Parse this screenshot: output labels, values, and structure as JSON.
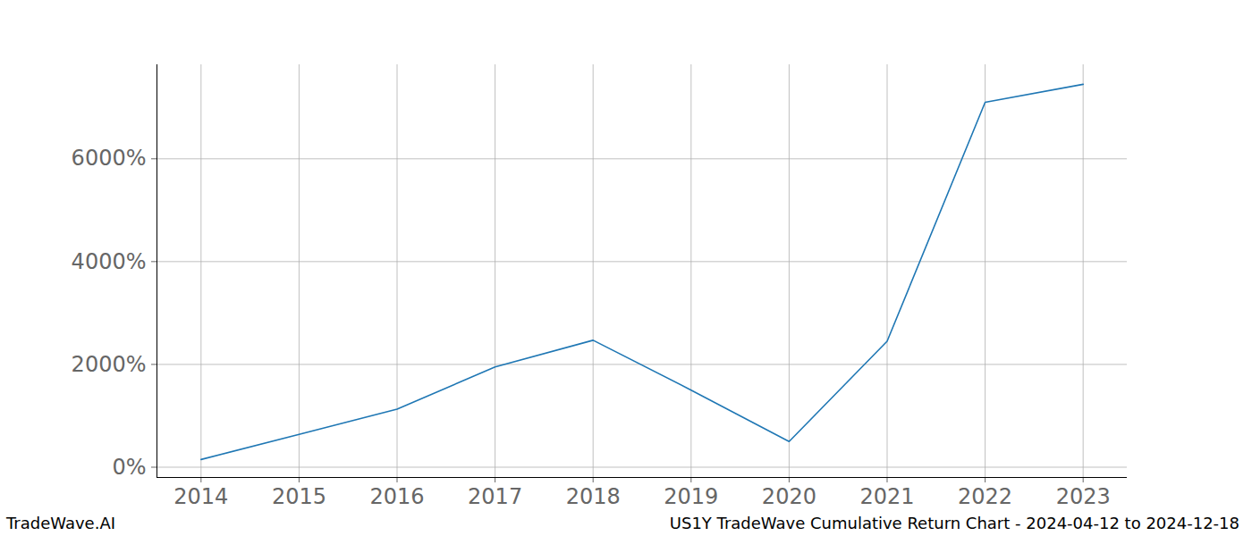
{
  "chart_data": {
    "type": "line",
    "title": "US1Y TradeWave Cumulative Return Chart - 2024-04-12 to 2024-12-18",
    "caption": "TradeWave.AI",
    "x": [
      2014,
      2015,
      2016,
      2017,
      2018,
      2019,
      2020,
      2021,
      2022,
      2023
    ],
    "values": [
      150,
      640,
      1130,
      1950,
      2470,
      1500,
      500,
      2450,
      7100,
      7450
    ],
    "color": "#1f77b4",
    "xlim": [
      2013.55,
      2023.45
    ],
    "xticks": [
      2014,
      2015,
      2016,
      2017,
      2018,
      2019,
      2020,
      2021,
      2022,
      2023
    ],
    "ylim": [
      -200,
      7830
    ],
    "yticks": [
      {
        "value": 0,
        "label": "0%"
      },
      {
        "value": 2000,
        "label": "2000%"
      },
      {
        "value": 4000,
        "label": "4000%"
      },
      {
        "value": 6000,
        "label": "6000%"
      }
    ],
    "grid": true
  }
}
